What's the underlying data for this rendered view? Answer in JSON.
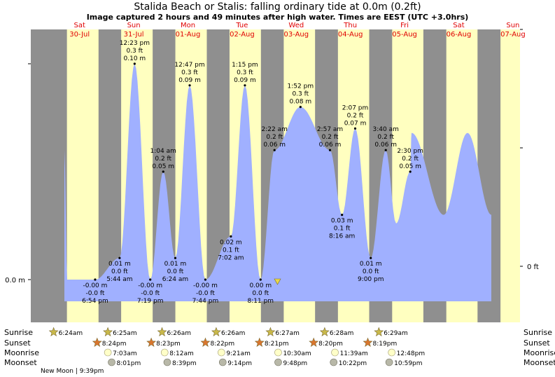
{
  "title": "Stalida Beach or Stalis: falling  ordinary tide at 0.0m (0.2ft)",
  "subtitle": "Image captured 2 hours and 49 minutes after high water. Times are EEST (UTC +3.0hrs)",
  "colors": {
    "night": "#8f8f8f",
    "day": "#ffffc0",
    "tide": "#a0b0ff",
    "day_label": "#e00000",
    "sunrise_star": "#c8b84a",
    "sunset_star": "#d9762e",
    "moonrise": "#ffffc8",
    "moonset": "#b8b8a8",
    "marker": "#e8d84a"
  },
  "days": [
    {
      "dow": "Sat",
      "date": "30-Jul"
    },
    {
      "dow": "Sun",
      "date": "31-Jul"
    },
    {
      "dow": "Mon",
      "date": "01-Aug"
    },
    {
      "dow": "Tue",
      "date": "02-Aug"
    },
    {
      "dow": "Wed",
      "date": "03-Aug"
    },
    {
      "dow": "Thu",
      "date": "04-Aug"
    },
    {
      "dow": "Fri",
      "date": "05-Aug"
    },
    {
      "dow": "Sat",
      "date": "06-Aug"
    },
    {
      "dow": "Sun",
      "date": "07-Aug"
    }
  ],
  "axes": {
    "left_zero": "0.0 m",
    "right_zero": "0 ft"
  },
  "rows": {
    "sunrise": "Sunrise",
    "sunset": "Sunset",
    "moonrise": "Moonrise",
    "moonset": "Moonset"
  },
  "sunrise": [
    "6:24am",
    "6:25am",
    "6:26am",
    "6:26am",
    "6:27am",
    "6:28am",
    "6:29am"
  ],
  "sunset": [
    "8:24pm",
    "8:23pm",
    "8:22pm",
    "8:21pm",
    "8:20pm",
    "8:19pm"
  ],
  "moonrise": [
    "7:03am",
    "8:12am",
    "9:21am",
    "10:30am",
    "11:39am",
    "12:48pm"
  ],
  "moonset": [
    "8:01pm",
    "8:39pm",
    "9:14pm",
    "9:48pm",
    "10:22pm",
    "10:59pm"
  ],
  "new_moon": "New Moon | 9:39pm",
  "chart_data": {
    "type": "area",
    "title": "Stalida Beach or Stalis: falling  ordinary tide at 0.0m (0.2ft)",
    "y_unit": "m",
    "ylim": [
      -0.01,
      0.11
    ],
    "tide_events": [
      {
        "time": "6:54 pm",
        "day": "Sat 30-Jul",
        "m": "-0.00 m",
        "ft": "-0.0 ft",
        "value": -0.0,
        "kind": "low"
      },
      {
        "time": "12:23 pm",
        "day": "Sun 31-Jul",
        "m": "0.10 m",
        "ft": "0.3 ft",
        "value": 0.1,
        "kind": "high"
      },
      {
        "time": "5:44 am",
        "day": "Sun 31-Jul",
        "m": "0.01 m",
        "ft": "0.0 ft",
        "value": 0.01,
        "kind": "low"
      },
      {
        "time": "7:19 pm",
        "day": "Sun 31-Jul",
        "m": "-0.00 m",
        "ft": "-0.0 ft",
        "value": -0.0,
        "kind": "low"
      },
      {
        "time": "1:04 am",
        "day": "Mon 01-Aug",
        "m": "0.05 m",
        "ft": "0.2 ft",
        "value": 0.05,
        "kind": "high"
      },
      {
        "time": "12:47 pm",
        "day": "Mon 01-Aug",
        "m": "0.09 m",
        "ft": "0.3 ft",
        "value": 0.09,
        "kind": "high"
      },
      {
        "time": "6:24 am",
        "day": "Mon 01-Aug",
        "m": "0.01 m",
        "ft": "0.0 ft",
        "value": 0.01,
        "kind": "low"
      },
      {
        "time": "7:44 pm",
        "day": "Mon 01-Aug",
        "m": "-0.00 m",
        "ft": "-0.0 ft",
        "value": -0.0,
        "kind": "low"
      },
      {
        "time": "1:15 pm",
        "day": "Tue 02-Aug",
        "m": "0.09 m",
        "ft": "0.3 ft",
        "value": 0.09,
        "kind": "high"
      },
      {
        "time": "7:02 am",
        "day": "Tue 02-Aug",
        "m": "0.02 m",
        "ft": "0.1 ft",
        "value": 0.02,
        "kind": "low"
      },
      {
        "time": "8:11 pm",
        "day": "Tue 02-Aug",
        "m": "0.00 m",
        "ft": "0.0 ft",
        "value": 0.0,
        "kind": "low"
      },
      {
        "time": "2:22 am",
        "day": "Wed 03-Aug",
        "m": "0.06 m",
        "ft": "0.2 ft",
        "value": 0.06,
        "kind": "high"
      },
      {
        "time": "1:52 pm",
        "day": "Wed 03-Aug",
        "m": "0.08 m",
        "ft": "0.3 ft",
        "value": 0.08,
        "kind": "high"
      },
      {
        "time": "2:57 am",
        "day": "Thu 04-Aug",
        "m": "0.06 m",
        "ft": "0.2 ft",
        "value": 0.06,
        "kind": "high"
      },
      {
        "time": "2:07 pm",
        "day": "Thu 04-Aug",
        "m": "0.07 m",
        "ft": "0.2 ft",
        "value": 0.07,
        "kind": "high"
      },
      {
        "time": "8:16 am",
        "day": "Thu 04-Aug",
        "m": "0.03 m",
        "ft": "0.1 ft",
        "value": 0.03,
        "kind": "low"
      },
      {
        "time": "9:00 pm",
        "day": "Thu 04-Aug",
        "m": "0.01 m",
        "ft": "0.0 ft",
        "value": 0.01,
        "kind": "low"
      },
      {
        "time": "3:40 am",
        "day": "Fri 05-Aug",
        "m": "0.06 m",
        "ft": "0.2 ft",
        "value": 0.06,
        "kind": "high"
      },
      {
        "time": "2:30 pm",
        "day": "Fri 05-Aug",
        "m": "0.05 m",
        "ft": "0.2 ft",
        "value": 0.05,
        "kind": "high"
      }
    ]
  }
}
